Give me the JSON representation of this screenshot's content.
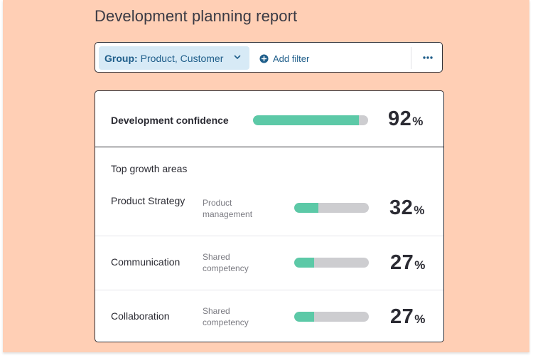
{
  "page": {
    "title": "Development planning report"
  },
  "filterbar": {
    "group_label": "Group:",
    "group_value": "Product, Customer",
    "add_filter_label": "Add filter",
    "more_icon": "ellipsis-icon"
  },
  "confidence": {
    "label": "Development confidence",
    "value": "92",
    "unit": "%",
    "fraction": 0.92
  },
  "growth": {
    "title": "Top growth areas",
    "items": [
      {
        "name": "Product Strategy",
        "category": "Product management",
        "value": "32",
        "unit": "%",
        "fraction": 0.32
      },
      {
        "name": "Communication",
        "category": "Shared competency",
        "value": "27",
        "unit": "%",
        "fraction": 0.27
      },
      {
        "name": "Collaboration",
        "category": "Shared competency",
        "value": "27",
        "unit": "%",
        "fraction": 0.27
      }
    ]
  },
  "colors": {
    "background": "#ffcfb5",
    "accent": "#5cc9a7",
    "track": "#cdcdd0",
    "chip": "#d7eaf6",
    "link": "#1f5e8a"
  }
}
